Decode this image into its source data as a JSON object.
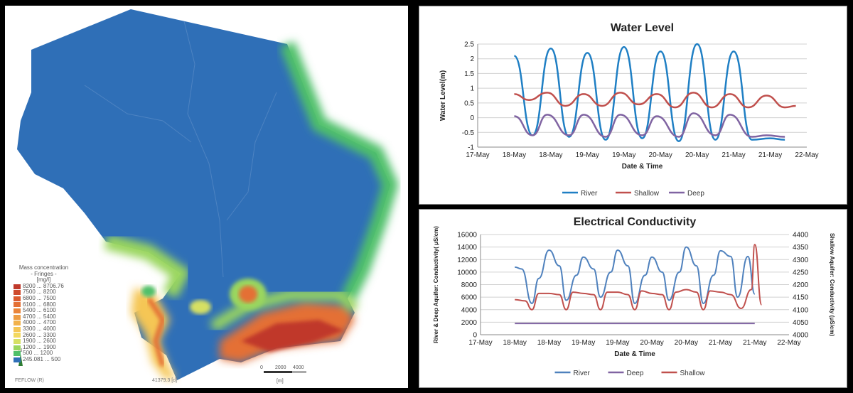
{
  "map": {
    "legend_title": "Mass concentration",
    "legend_subtitle": "- Fringes -",
    "legend_unit": "[mg/l]",
    "legend_rows": [
      {
        "label": "8200 ... 8706.76",
        "color": "#c0392b"
      },
      {
        "label": "7500 ... 8200",
        "color": "#cf4a2d"
      },
      {
        "label": "6800 ... 7500",
        "color": "#db5a2f"
      },
      {
        "label": "6100 ... 6800",
        "color": "#e46f34"
      },
      {
        "label": "5400 ... 6100",
        "color": "#ea853a"
      },
      {
        "label": "4700 ... 5400",
        "color": "#ee9c42"
      },
      {
        "label": "4000 ... 4700",
        "color": "#f2b24b"
      },
      {
        "label": "3300 ... 4000",
        "color": "#f5c654"
      },
      {
        "label": "2600 ... 3300",
        "color": "#f3d85e"
      },
      {
        "label": "1900 ... 2600",
        "color": "#d6e064"
      },
      {
        "label": "1200 ... 1900",
        "color": "#9ad65e"
      },
      {
        "label": "500 ... 1200",
        "color": "#4fc06a"
      },
      {
        "label": "245.081 ... 500",
        "color": "#2f6fb7"
      }
    ],
    "north_label": "N",
    "software_label": "FEFLOW (R)",
    "time_label": "41379.3 [d]",
    "scale_labels": [
      "0",
      "2000",
      "4000"
    ],
    "scale_unit": "[m]",
    "colors": {
      "base": "#2f6fb7",
      "low": "#4fc06a",
      "mid": "#f3d85e",
      "high": "#e46f34",
      "max": "#c0392b"
    }
  },
  "chart_data": [
    {
      "type": "line",
      "title": "Water Level",
      "xlabel": "Date & Time",
      "ylabel": "Water Level(m)",
      "x_tick_labels": [
        "17-May",
        "18-May",
        "18-May",
        "19-May",
        "19-May",
        "20-May",
        "20-May",
        "21-May",
        "21-May",
        "22-May"
      ],
      "xlim": [
        0,
        9
      ],
      "ylim": [
        -1,
        2.5
      ],
      "y_ticks": [
        -1,
        -0.5,
        0,
        0.5,
        1,
        1.5,
        2,
        2.5
      ],
      "y_tick_labels": [
        "-1",
        "-0.5",
        "0",
        "0.5",
        "1",
        "1.5",
        "2",
        "2.5"
      ],
      "grid": true,
      "legend_position": "bottom",
      "series": [
        {
          "name": "River",
          "color": "#1f7fc4",
          "x": [
            1.0,
            1.5,
            2.0,
            2.5,
            3.0,
            3.5,
            4.0,
            4.5,
            5.0,
            5.5,
            6.0,
            6.5,
            7.0,
            7.5,
            8.0,
            8.4
          ],
          "y": [
            2.1,
            -0.6,
            2.35,
            -0.65,
            2.2,
            -0.75,
            2.4,
            -0.7,
            2.25,
            -0.8,
            2.5,
            -0.75,
            2.25,
            -0.75,
            -0.7,
            -0.75
          ]
        },
        {
          "name": "Shallow",
          "color": "#c0504d",
          "x": [
            1.0,
            1.4,
            1.9,
            2.4,
            2.9,
            3.4,
            3.9,
            4.4,
            4.9,
            5.4,
            5.9,
            6.4,
            6.9,
            7.4,
            7.9,
            8.4,
            8.7
          ],
          "y": [
            0.8,
            0.6,
            0.85,
            0.4,
            0.8,
            0.4,
            0.85,
            0.45,
            0.8,
            0.35,
            0.85,
            0.35,
            0.8,
            0.35,
            0.75,
            0.35,
            0.4
          ]
        },
        {
          "name": "Deep",
          "color": "#8064a2",
          "x": [
            1.0,
            1.5,
            1.9,
            2.5,
            2.9,
            3.5,
            3.9,
            4.5,
            4.9,
            5.5,
            5.9,
            6.5,
            6.9,
            7.5,
            7.9,
            8.4
          ],
          "y": [
            0.05,
            -0.6,
            0.1,
            -0.6,
            0.1,
            -0.65,
            0.1,
            -0.6,
            0.05,
            -0.65,
            0.15,
            -0.6,
            0.1,
            -0.65,
            -0.6,
            -0.65
          ]
        }
      ]
    },
    {
      "type": "line",
      "title": "Electrical Conductivity",
      "xlabel": "Date & Time",
      "ylabel": "River & Deep Aquifer: Conductivity( μS/cm)",
      "y2label": "Shallow Aquifer: Conductivity (μS/cm)",
      "x_tick_labels": [
        "17-May",
        "18-May",
        "18-May",
        "19-May",
        "19-May",
        "20-May",
        "20-May",
        "21-May",
        "21-May",
        "22-May"
      ],
      "xlim": [
        0,
        9
      ],
      "ylim": [
        0,
        16000
      ],
      "y_ticks": [
        0,
        2000,
        4000,
        6000,
        8000,
        10000,
        12000,
        14000,
        16000
      ],
      "y_tick_labels": [
        "0",
        "2000",
        "4000",
        "6000",
        "8000",
        "10000",
        "12000",
        "14000",
        "16000"
      ],
      "y2lim": [
        4000,
        4400
      ],
      "y2_ticks": [
        4000,
        4050,
        4100,
        4150,
        4200,
        4250,
        4300,
        4350,
        4400
      ],
      "y2_tick_labels": [
        "4000",
        "4050",
        "4100",
        "4150",
        "4200",
        "4250",
        "4300",
        "4350",
        "4400"
      ],
      "grid": true,
      "legend_position": "bottom",
      "series": [
        {
          "name": "River",
          "color": "#4f81bd",
          "axis": "left",
          "x": [
            1.0,
            1.2,
            1.5,
            1.7,
            2.0,
            2.3,
            2.5,
            2.8,
            3.0,
            3.3,
            3.5,
            3.8,
            4.0,
            4.3,
            4.5,
            4.8,
            5.0,
            5.3,
            5.5,
            5.8,
            6.0,
            6.3,
            6.5,
            6.8,
            7.0,
            7.3,
            7.5,
            7.8,
            8.0
          ],
          "y": [
            10800,
            10500,
            5000,
            9000,
            13500,
            11000,
            5500,
            9500,
            12400,
            10500,
            6000,
            10000,
            13500,
            11000,
            5000,
            9500,
            12400,
            10000,
            5500,
            10000,
            14000,
            11000,
            5000,
            9500,
            13400,
            12500,
            6000,
            12500,
            6500
          ]
        },
        {
          "name": "Deep",
          "color": "#8064a2",
          "axis": "left",
          "x": [
            1.0,
            8.0
          ],
          "y": [
            1800,
            1800
          ]
        },
        {
          "name": "Shallow",
          "color": "#c0504d",
          "axis": "right",
          "x": [
            1.0,
            1.3,
            1.5,
            1.7,
            2.0,
            2.3,
            2.5,
            2.7,
            3.0,
            3.3,
            3.5,
            3.7,
            4.0,
            4.3,
            4.5,
            4.7,
            5.0,
            5.3,
            5.5,
            5.7,
            6.0,
            6.3,
            6.5,
            6.7,
            7.0,
            7.3,
            7.6,
            7.9,
            8.0,
            8.2
          ],
          "y": [
            4140,
            4135,
            4100,
            4165,
            4165,
            4160,
            4100,
            4170,
            4165,
            4160,
            4100,
            4170,
            4170,
            4160,
            4100,
            4175,
            4165,
            4160,
            4100,
            4170,
            4180,
            4170,
            4100,
            4175,
            4170,
            4160,
            4105,
            4180,
            4360,
            4120
          ]
        }
      ]
    }
  ]
}
